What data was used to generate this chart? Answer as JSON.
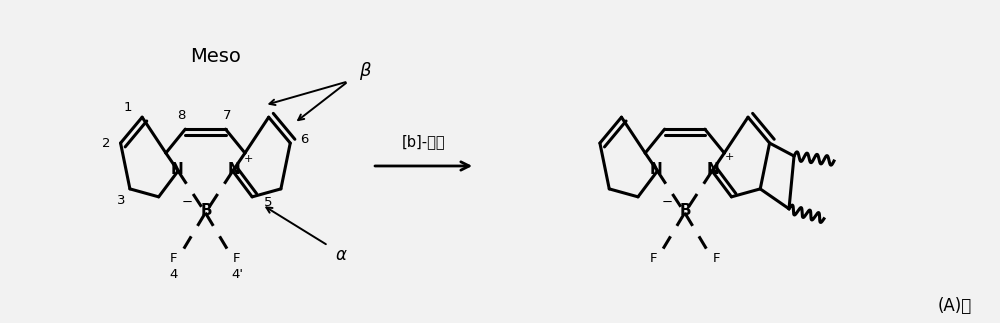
{
  "bg_color": "#f2f2f2",
  "line_color": "#000000",
  "line_width": 2.2,
  "text_color": "#000000",
  "title": "Meso",
  "label_A": "(A)。",
  "reaction_label": "[b]-稠合",
  "fig_width": 10.0,
  "fig_height": 3.23,
  "dpi": 100
}
